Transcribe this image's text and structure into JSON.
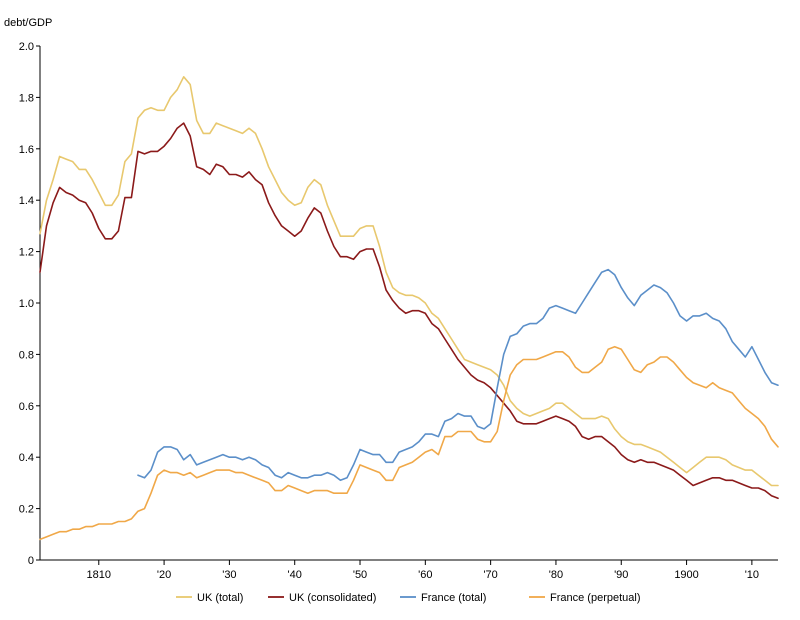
{
  "chart_data": {
    "type": "line",
    "title": "",
    "xlabel": "",
    "ylabel": "debt/GDP",
    "xlim": [
      1801,
      1914
    ],
    "ylim": [
      0,
      2.0
    ],
    "grid": false,
    "legend_position": "bottom",
    "y_ticks": [
      0,
      0.2,
      0.4,
      0.6,
      0.8,
      1.0,
      1.2,
      1.4,
      1.6,
      1.8,
      2.0
    ],
    "y_tick_labels": [
      "0",
      "0.2",
      "0.4",
      "0.6",
      "0.8",
      "1.0",
      "1.2",
      "1.4",
      "1.6",
      "1.8",
      "2.0"
    ],
    "x_ticks": [
      1810,
      1820,
      1830,
      1840,
      1850,
      1860,
      1870,
      1880,
      1890,
      1900,
      1910
    ],
    "x_tick_labels": [
      "1810",
      "'20",
      "'30",
      "'40",
      "'50",
      "'60",
      "'70",
      "'80",
      "'90",
      "1900",
      "'10"
    ],
    "series": [
      {
        "name": "UK (total)",
        "color": "#e8c86e",
        "x": [
          1801,
          1802,
          1803,
          1804,
          1805,
          1806,
          1807,
          1808,
          1809,
          1810,
          1811,
          1812,
          1813,
          1814,
          1815,
          1816,
          1817,
          1818,
          1819,
          1820,
          1821,
          1822,
          1823,
          1824,
          1825,
          1826,
          1827,
          1828,
          1829,
          1830,
          1831,
          1832,
          1833,
          1834,
          1835,
          1836,
          1837,
          1838,
          1839,
          1840,
          1841,
          1842,
          1843,
          1844,
          1845,
          1846,
          1847,
          1848,
          1849,
          1850,
          1851,
          1852,
          1853,
          1854,
          1855,
          1856,
          1857,
          1858,
          1859,
          1860,
          1861,
          1862,
          1863,
          1864,
          1865,
          1866,
          1867,
          1868,
          1869,
          1870,
          1871,
          1872,
          1873,
          1874,
          1875,
          1876,
          1877,
          1878,
          1879,
          1880,
          1881,
          1882,
          1883,
          1884,
          1885,
          1886,
          1887,
          1888,
          1889,
          1890,
          1891,
          1892,
          1893,
          1894,
          1895,
          1896,
          1897,
          1898,
          1899,
          1900,
          1901,
          1902,
          1903,
          1904,
          1905,
          1906,
          1907,
          1908,
          1909,
          1910,
          1911,
          1912,
          1913,
          1914
        ],
        "values": [
          1.27,
          1.4,
          1.48,
          1.57,
          1.56,
          1.55,
          1.52,
          1.52,
          1.48,
          1.43,
          1.38,
          1.38,
          1.42,
          1.55,
          1.58,
          1.72,
          1.75,
          1.76,
          1.75,
          1.75,
          1.8,
          1.83,
          1.88,
          1.85,
          1.71,
          1.66,
          1.66,
          1.7,
          1.69,
          1.68,
          1.67,
          1.66,
          1.68,
          1.66,
          1.6,
          1.53,
          1.48,
          1.43,
          1.4,
          1.38,
          1.39,
          1.45,
          1.48,
          1.46,
          1.38,
          1.32,
          1.26,
          1.26,
          1.26,
          1.29,
          1.3,
          1.3,
          1.22,
          1.12,
          1.06,
          1.04,
          1.03,
          1.03,
          1.02,
          1.0,
          0.96,
          0.94,
          0.9,
          0.86,
          0.82,
          0.78,
          0.77,
          0.76,
          0.75,
          0.74,
          0.72,
          0.68,
          0.62,
          0.59,
          0.57,
          0.56,
          0.57,
          0.58,
          0.59,
          0.61,
          0.61,
          0.59,
          0.57,
          0.55,
          0.55,
          0.55,
          0.56,
          0.55,
          0.51,
          0.48,
          0.46,
          0.45,
          0.45,
          0.44,
          0.43,
          0.42,
          0.4,
          0.38,
          0.36,
          0.34,
          0.36,
          0.38,
          0.4,
          0.4,
          0.4,
          0.39,
          0.37,
          0.36,
          0.35,
          0.35,
          0.33,
          0.31,
          0.29,
          0.29
        ]
      },
      {
        "name": "UK (consolidated)",
        "color": "#8b1a1a",
        "x": [
          1801,
          1802,
          1803,
          1804,
          1805,
          1806,
          1807,
          1808,
          1809,
          1810,
          1811,
          1812,
          1813,
          1814,
          1815,
          1816,
          1817,
          1818,
          1819,
          1820,
          1821,
          1822,
          1823,
          1824,
          1825,
          1826,
          1827,
          1828,
          1829,
          1830,
          1831,
          1832,
          1833,
          1834,
          1835,
          1836,
          1837,
          1838,
          1839,
          1840,
          1841,
          1842,
          1843,
          1844,
          1845,
          1846,
          1847,
          1848,
          1849,
          1850,
          1851,
          1852,
          1853,
          1854,
          1855,
          1856,
          1857,
          1858,
          1859,
          1860,
          1861,
          1862,
          1863,
          1864,
          1865,
          1866,
          1867,
          1868,
          1869,
          1870,
          1871,
          1872,
          1873,
          1874,
          1875,
          1876,
          1877,
          1878,
          1879,
          1880,
          1881,
          1882,
          1883,
          1884,
          1885,
          1886,
          1887,
          1888,
          1889,
          1890,
          1891,
          1892,
          1893,
          1894,
          1895,
          1896,
          1897,
          1898,
          1899,
          1900,
          1901,
          1902,
          1903,
          1904,
          1905,
          1906,
          1907,
          1908,
          1909,
          1910,
          1911,
          1912,
          1913,
          1914
        ],
        "values": [
          1.12,
          1.3,
          1.39,
          1.45,
          1.43,
          1.42,
          1.4,
          1.39,
          1.35,
          1.29,
          1.25,
          1.25,
          1.28,
          1.41,
          1.41,
          1.59,
          1.58,
          1.59,
          1.59,
          1.61,
          1.64,
          1.68,
          1.7,
          1.65,
          1.53,
          1.52,
          1.5,
          1.54,
          1.53,
          1.5,
          1.5,
          1.49,
          1.51,
          1.48,
          1.46,
          1.39,
          1.34,
          1.3,
          1.28,
          1.26,
          1.28,
          1.33,
          1.37,
          1.35,
          1.28,
          1.22,
          1.18,
          1.18,
          1.17,
          1.2,
          1.21,
          1.21,
          1.14,
          1.05,
          1.01,
          0.98,
          0.96,
          0.97,
          0.97,
          0.96,
          0.92,
          0.9,
          0.86,
          0.82,
          0.78,
          0.75,
          0.72,
          0.7,
          0.69,
          0.67,
          0.64,
          0.61,
          0.58,
          0.54,
          0.53,
          0.53,
          0.53,
          0.54,
          0.55,
          0.56,
          0.55,
          0.54,
          0.52,
          0.48,
          0.47,
          0.48,
          0.48,
          0.46,
          0.44,
          0.41,
          0.39,
          0.38,
          0.39,
          0.38,
          0.38,
          0.37,
          0.36,
          0.35,
          0.33,
          0.31,
          0.29,
          0.3,
          0.31,
          0.32,
          0.32,
          0.31,
          0.31,
          0.3,
          0.29,
          0.28,
          0.28,
          0.27,
          0.25,
          0.24
        ]
      },
      {
        "name": "France (total)",
        "color": "#5b8fc9",
        "x": [
          1816,
          1817,
          1818,
          1819,
          1820,
          1821,
          1822,
          1823,
          1824,
          1825,
          1826,
          1827,
          1828,
          1829,
          1830,
          1831,
          1832,
          1833,
          1834,
          1835,
          1836,
          1837,
          1838,
          1839,
          1840,
          1841,
          1842,
          1843,
          1844,
          1845,
          1846,
          1847,
          1848,
          1849,
          1850,
          1851,
          1852,
          1853,
          1854,
          1855,
          1856,
          1857,
          1858,
          1859,
          1860,
          1861,
          1862,
          1863,
          1864,
          1865,
          1866,
          1867,
          1868,
          1869,
          1870,
          1871,
          1872,
          1873,
          1874,
          1875,
          1876,
          1877,
          1878,
          1879,
          1880,
          1881,
          1882,
          1883,
          1884,
          1885,
          1886,
          1887,
          1888,
          1889,
          1890,
          1891,
          1892,
          1893,
          1894,
          1895,
          1896,
          1897,
          1898,
          1899,
          1900,
          1901,
          1902,
          1903,
          1904,
          1905,
          1906,
          1907,
          1908,
          1909,
          1910,
          1911,
          1912,
          1913,
          1914
        ],
        "values": [
          0.33,
          0.32,
          0.35,
          0.42,
          0.44,
          0.44,
          0.43,
          0.39,
          0.41,
          0.37,
          0.38,
          0.39,
          0.4,
          0.41,
          0.4,
          0.4,
          0.39,
          0.4,
          0.39,
          0.37,
          0.36,
          0.33,
          0.32,
          0.34,
          0.33,
          0.32,
          0.32,
          0.33,
          0.33,
          0.34,
          0.33,
          0.31,
          0.32,
          0.37,
          0.43,
          0.42,
          0.41,
          0.41,
          0.38,
          0.38,
          0.42,
          0.43,
          0.44,
          0.46,
          0.49,
          0.49,
          0.48,
          0.54,
          0.55,
          0.57,
          0.56,
          0.56,
          0.52,
          0.51,
          0.53,
          0.67,
          0.8,
          0.87,
          0.88,
          0.91,
          0.92,
          0.92,
          0.94,
          0.98,
          0.99,
          0.98,
          0.97,
          0.96,
          1.0,
          1.04,
          1.08,
          1.12,
          1.13,
          1.11,
          1.06,
          1.02,
          0.99,
          1.03,
          1.05,
          1.07,
          1.06,
          1.04,
          1.0,
          0.95,
          0.93,
          0.95,
          0.95,
          0.96,
          0.94,
          0.93,
          0.9,
          0.85,
          0.82,
          0.79,
          0.83,
          0.78,
          0.73,
          0.69,
          0.68
        ]
      },
      {
        "name": "France (perpetual)",
        "color": "#f0a848",
        "x": [
          1801,
          1802,
          1803,
          1804,
          1805,
          1806,
          1807,
          1808,
          1809,
          1810,
          1811,
          1812,
          1813,
          1814,
          1815,
          1816,
          1817,
          1818,
          1819,
          1820,
          1821,
          1822,
          1823,
          1824,
          1825,
          1826,
          1827,
          1828,
          1829,
          1830,
          1831,
          1832,
          1833,
          1834,
          1835,
          1836,
          1837,
          1838,
          1839,
          1840,
          1841,
          1842,
          1843,
          1844,
          1845,
          1846,
          1847,
          1848,
          1849,
          1850,
          1851,
          1852,
          1853,
          1854,
          1855,
          1856,
          1857,
          1858,
          1859,
          1860,
          1861,
          1862,
          1863,
          1864,
          1865,
          1866,
          1867,
          1868,
          1869,
          1870,
          1871,
          1872,
          1873,
          1874,
          1875,
          1876,
          1877,
          1878,
          1879,
          1880,
          1881,
          1882,
          1883,
          1884,
          1885,
          1886,
          1887,
          1888,
          1889,
          1890,
          1891,
          1892,
          1893,
          1894,
          1895,
          1896,
          1897,
          1898,
          1899,
          1900,
          1901,
          1902,
          1903,
          1904,
          1905,
          1906,
          1907,
          1908,
          1909,
          1910,
          1911,
          1912,
          1913,
          1914
        ],
        "values": [
          0.08,
          0.09,
          0.1,
          0.11,
          0.11,
          0.12,
          0.12,
          0.13,
          0.13,
          0.14,
          0.14,
          0.14,
          0.15,
          0.15,
          0.16,
          0.19,
          0.2,
          0.26,
          0.33,
          0.35,
          0.34,
          0.34,
          0.33,
          0.34,
          0.32,
          0.33,
          0.34,
          0.35,
          0.35,
          0.35,
          0.34,
          0.34,
          0.33,
          0.32,
          0.31,
          0.3,
          0.27,
          0.27,
          0.29,
          0.28,
          0.27,
          0.26,
          0.27,
          0.27,
          0.27,
          0.26,
          0.26,
          0.26,
          0.31,
          0.37,
          0.36,
          0.35,
          0.34,
          0.31,
          0.31,
          0.36,
          0.37,
          0.38,
          0.4,
          0.42,
          0.43,
          0.41,
          0.48,
          0.48,
          0.5,
          0.5,
          0.5,
          0.47,
          0.46,
          0.46,
          0.5,
          0.62,
          0.72,
          0.76,
          0.78,
          0.78,
          0.78,
          0.79,
          0.8,
          0.81,
          0.81,
          0.79,
          0.75,
          0.73,
          0.73,
          0.75,
          0.77,
          0.82,
          0.83,
          0.82,
          0.78,
          0.74,
          0.73,
          0.76,
          0.77,
          0.79,
          0.79,
          0.77,
          0.74,
          0.71,
          0.69,
          0.68,
          0.67,
          0.69,
          0.67,
          0.66,
          0.65,
          0.62,
          0.59,
          0.57,
          0.55,
          0.52,
          0.47,
          0.44
        ]
      }
    ]
  }
}
